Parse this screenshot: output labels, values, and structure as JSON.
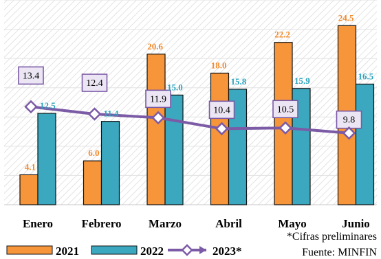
{
  "chart_data": {
    "type": "bar",
    "categories": [
      "Enero",
      "Febrero",
      "Marzo",
      "Abril",
      "Mayo",
      "Junio"
    ],
    "series": [
      {
        "name": "2021",
        "kind": "bar",
        "color": "#f7953a",
        "label_color": "#f28a2b",
        "values": [
          4.1,
          6.0,
          20.6,
          18.0,
          22.2,
          24.5
        ]
      },
      {
        "name": "2022",
        "kind": "bar",
        "color": "#3ba8bf",
        "label_color": "#2aa4be",
        "values": [
          12.5,
          11.4,
          15.0,
          15.8,
          15.9,
          16.5
        ]
      },
      {
        "name": "2023*",
        "kind": "line",
        "color": "#7b5aa6",
        "box_fill": "#ece6f4",
        "values": [
          13.4,
          12.4,
          11.9,
          10.4,
          10.5,
          9.8
        ]
      }
    ],
    "ylim": [
      0,
      28
    ],
    "grid": true,
    "legend_position": "bottom-left",
    "notes": [
      "*Cifras preliminares",
      "Fuente: MINFIN"
    ]
  }
}
